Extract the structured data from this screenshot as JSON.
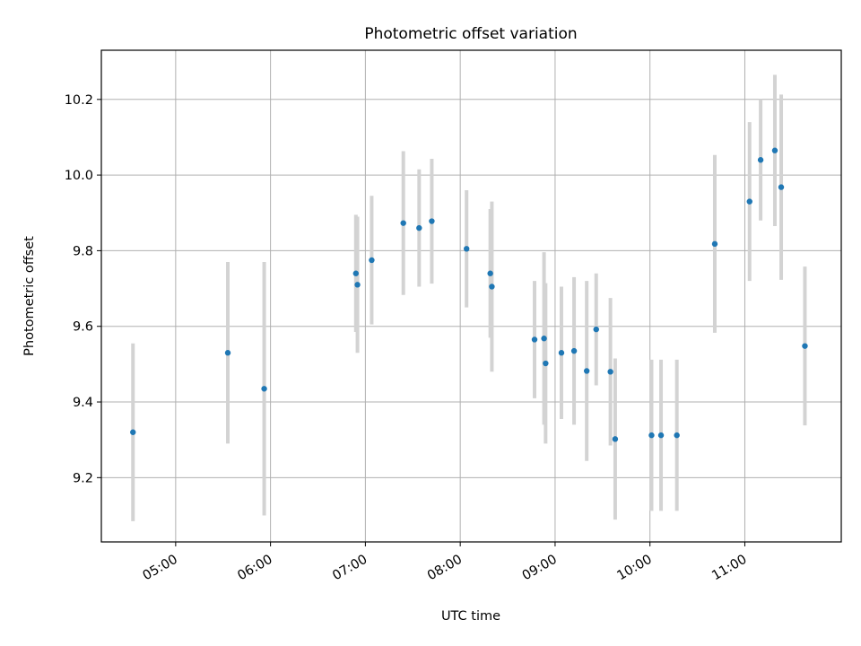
{
  "chart_data": {
    "type": "scatter",
    "title": "Photometric offset variation",
    "xlabel": "UTC time",
    "ylabel": "Photometric offset",
    "x_unit": "time (HH:MM UTC)",
    "xlim": [
      "04:13",
      "12:01"
    ],
    "ylim": [
      9.03,
      10.33
    ],
    "x_ticks": [
      "05:00",
      "06:00",
      "07:00",
      "08:00",
      "09:00",
      "10:00",
      "11:00"
    ],
    "y_ticks": [
      "9.2",
      "9.4",
      "9.6",
      "9.8",
      "10.0",
      "10.2"
    ],
    "grid": true,
    "legend": "none",
    "point_color": "#1f77b4",
    "errorbar_color": "#d3d3d3",
    "points": [
      {
        "x": "04:33",
        "y": 9.32,
        "err": 0.235
      },
      {
        "x": "05:33",
        "y": 9.53,
        "err": 0.24
      },
      {
        "x": "05:56",
        "y": 9.435,
        "err": 0.335
      },
      {
        "x": "06:54",
        "y": 9.74,
        "err": 0.155
      },
      {
        "x": "06:55",
        "y": 9.71,
        "err": 0.18
      },
      {
        "x": "07:04",
        "y": 9.775,
        "err": 0.17
      },
      {
        "x": "07:24",
        "y": 9.873,
        "err": 0.19
      },
      {
        "x": "07:34",
        "y": 9.86,
        "err": 0.155
      },
      {
        "x": "07:42",
        "y": 9.878,
        "err": 0.165
      },
      {
        "x": "08:04",
        "y": 9.805,
        "err": 0.155
      },
      {
        "x": "08:19",
        "y": 9.74,
        "err": 0.17
      },
      {
        "x": "08:20",
        "y": 9.705,
        "err": 0.225
      },
      {
        "x": "08:47",
        "y": 9.565,
        "err": 0.155
      },
      {
        "x": "08:53",
        "y": 9.568,
        "err": 0.228
      },
      {
        "x": "08:54",
        "y": 9.502,
        "err": 0.212
      },
      {
        "x": "09:04",
        "y": 9.53,
        "err": 0.175
      },
      {
        "x": "09:12",
        "y": 9.535,
        "err": 0.195
      },
      {
        "x": "09:20",
        "y": 9.482,
        "err": 0.238
      },
      {
        "x": "09:26",
        "y": 9.592,
        "err": 0.148
      },
      {
        "x": "09:35",
        "y": 9.48,
        "err": 0.195
      },
      {
        "x": "09:38",
        "y": 9.302,
        "err": 0.213
      },
      {
        "x": "10:01",
        "y": 9.312,
        "err": 0.2
      },
      {
        "x": "10:07",
        "y": 9.312,
        "err": 0.2
      },
      {
        "x": "10:17",
        "y": 9.312,
        "err": 0.2
      },
      {
        "x": "10:41",
        "y": 9.818,
        "err": 0.235
      },
      {
        "x": "11:03",
        "y": 9.93,
        "err": 0.21
      },
      {
        "x": "11:10",
        "y": 10.04,
        "err": 0.16
      },
      {
        "x": "11:19",
        "y": 10.065,
        "err": 0.2
      },
      {
        "x": "11:23",
        "y": 9.968,
        "err": 0.245
      },
      {
        "x": "11:38",
        "y": 9.548,
        "err": 0.21
      }
    ]
  }
}
